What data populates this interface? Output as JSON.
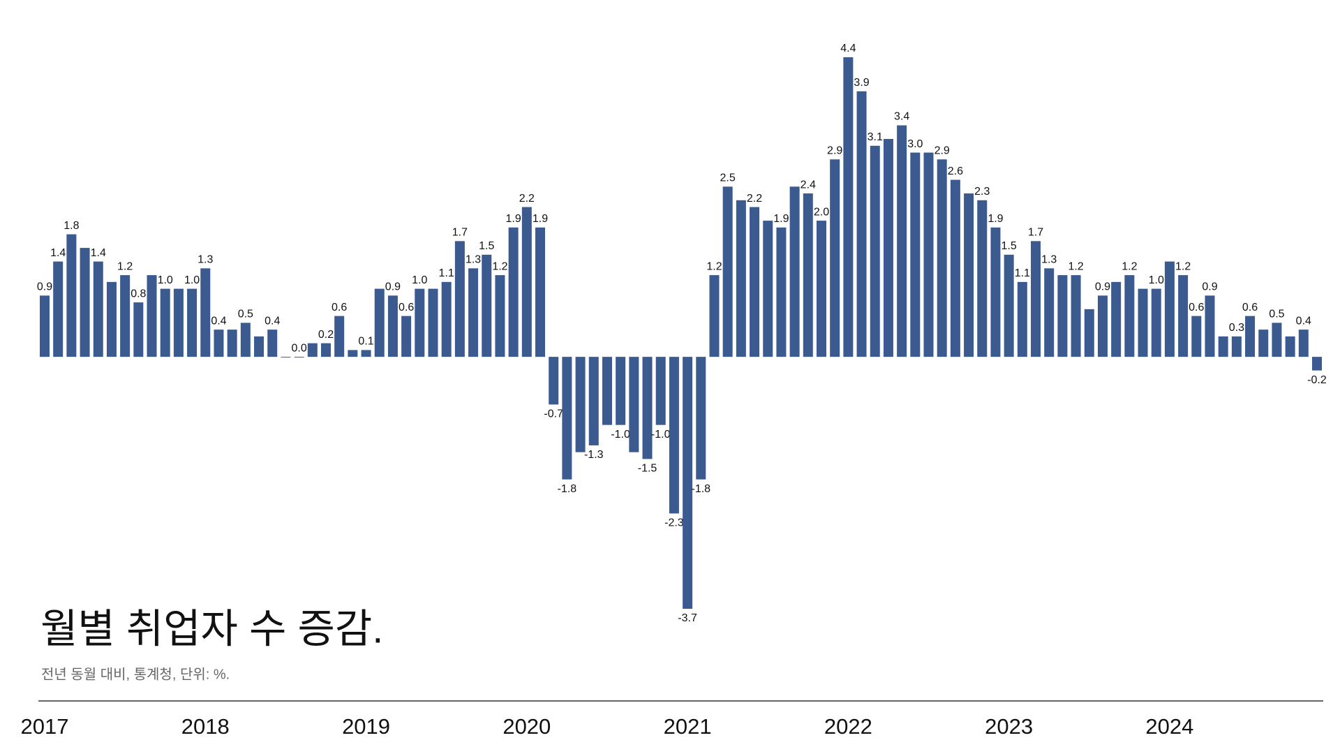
{
  "chart_data": {
    "type": "bar",
    "title": "월별 취업자 수 증감.",
    "subtitle": "전년 동월 대비, 통계청, 단위: %.",
    "color": "#3b5a8f",
    "categories": [
      "2017",
      null,
      null,
      null,
      null,
      null,
      null,
      null,
      null,
      null,
      null,
      null,
      "2018",
      null,
      null,
      null,
      null,
      null,
      null,
      null,
      null,
      null,
      null,
      null,
      "2019",
      null,
      null,
      null,
      null,
      null,
      null,
      null,
      null,
      null,
      null,
      null,
      "2020",
      null,
      null,
      null,
      null,
      null,
      null,
      null,
      null,
      null,
      null,
      null,
      "2021",
      null,
      null,
      null,
      null,
      null,
      null,
      null,
      null,
      null,
      null,
      null,
      "2022",
      null,
      null,
      null,
      null,
      null,
      null,
      null,
      null,
      null,
      null,
      null,
      "2023",
      null,
      null,
      null,
      null,
      null,
      null,
      null,
      null,
      null,
      null,
      null,
      "2024",
      null,
      null,
      null,
      null,
      null,
      null,
      null,
      null,
      null,
      null,
      null
    ],
    "values": [
      0.9,
      1.4,
      1.8,
      1.6,
      1.4,
      1.1,
      1.2,
      0.8,
      1.2,
      1.0,
      1.0,
      1.0,
      1.3,
      0.4,
      0.4,
      0.5,
      0.3,
      0.4,
      0.0,
      0.0,
      0.2,
      0.2,
      0.6,
      0.1,
      0.1,
      1.0,
      0.9,
      0.6,
      1.0,
      1.0,
      1.1,
      1.7,
      1.3,
      1.5,
      1.2,
      1.9,
      2.2,
      1.9,
      -0.7,
      -1.8,
      -1.4,
      -1.3,
      -1.0,
      -1.0,
      -1.4,
      -1.5,
      -1.0,
      -2.3,
      -3.7,
      -1.8,
      1.2,
      2.5,
      2.3,
      2.2,
      2.0,
      1.9,
      2.5,
      2.4,
      2.0,
      2.9,
      4.4,
      3.9,
      3.1,
      3.2,
      3.4,
      3.0,
      3.0,
      2.9,
      2.6,
      2.4,
      2.3,
      1.9,
      1.5,
      1.1,
      1.7,
      1.3,
      1.2,
      1.2,
      0.7,
      0.9,
      1.1,
      1.2,
      1.0,
      1.0,
      1.4,
      1.2,
      0.6,
      0.9,
      0.3,
      0.3,
      0.6,
      0.4,
      0.5,
      0.3,
      0.4,
      -0.2
    ],
    "value_labels": [
      "0.9",
      "1.4",
      "1.8",
      null,
      "1.4",
      null,
      "1.2",
      "0.8",
      null,
      "1.0",
      null,
      "1.0",
      "1.3",
      "0.4",
      null,
      "0.5",
      null,
      "0.4",
      null,
      "0.0",
      null,
      "0.2",
      "0.6",
      null,
      "0.1",
      null,
      "0.9",
      "0.6",
      "1.0",
      null,
      "1.1",
      "1.7",
      "1.3",
      "1.5",
      "1.2",
      "1.9",
      "2.2",
      "1.9",
      "-0.7",
      "-1.8",
      null,
      "-1.3",
      null,
      "-1.0",
      null,
      "-1.5",
      "-1.0",
      "-2.3",
      "-3.7",
      "-1.8",
      "1.2",
      "2.5",
      null,
      "2.2",
      null,
      "1.9",
      null,
      "2.4",
      "2.0",
      "2.9",
      "4.4",
      "3.9",
      "3.1",
      null,
      "3.4",
      "3.0",
      null,
      "2.9",
      "2.6",
      null,
      "2.3",
      "1.9",
      "1.5",
      "1.1",
      "1.7",
      "1.3",
      null,
      "1.2",
      null,
      "0.9",
      null,
      "1.2",
      null,
      "1.0",
      null,
      "1.2",
      "0.6",
      "0.9",
      null,
      "0.3",
      "0.6",
      null,
      "0.5",
      null,
      "0.4",
      "-0.2"
    ]
  }
}
